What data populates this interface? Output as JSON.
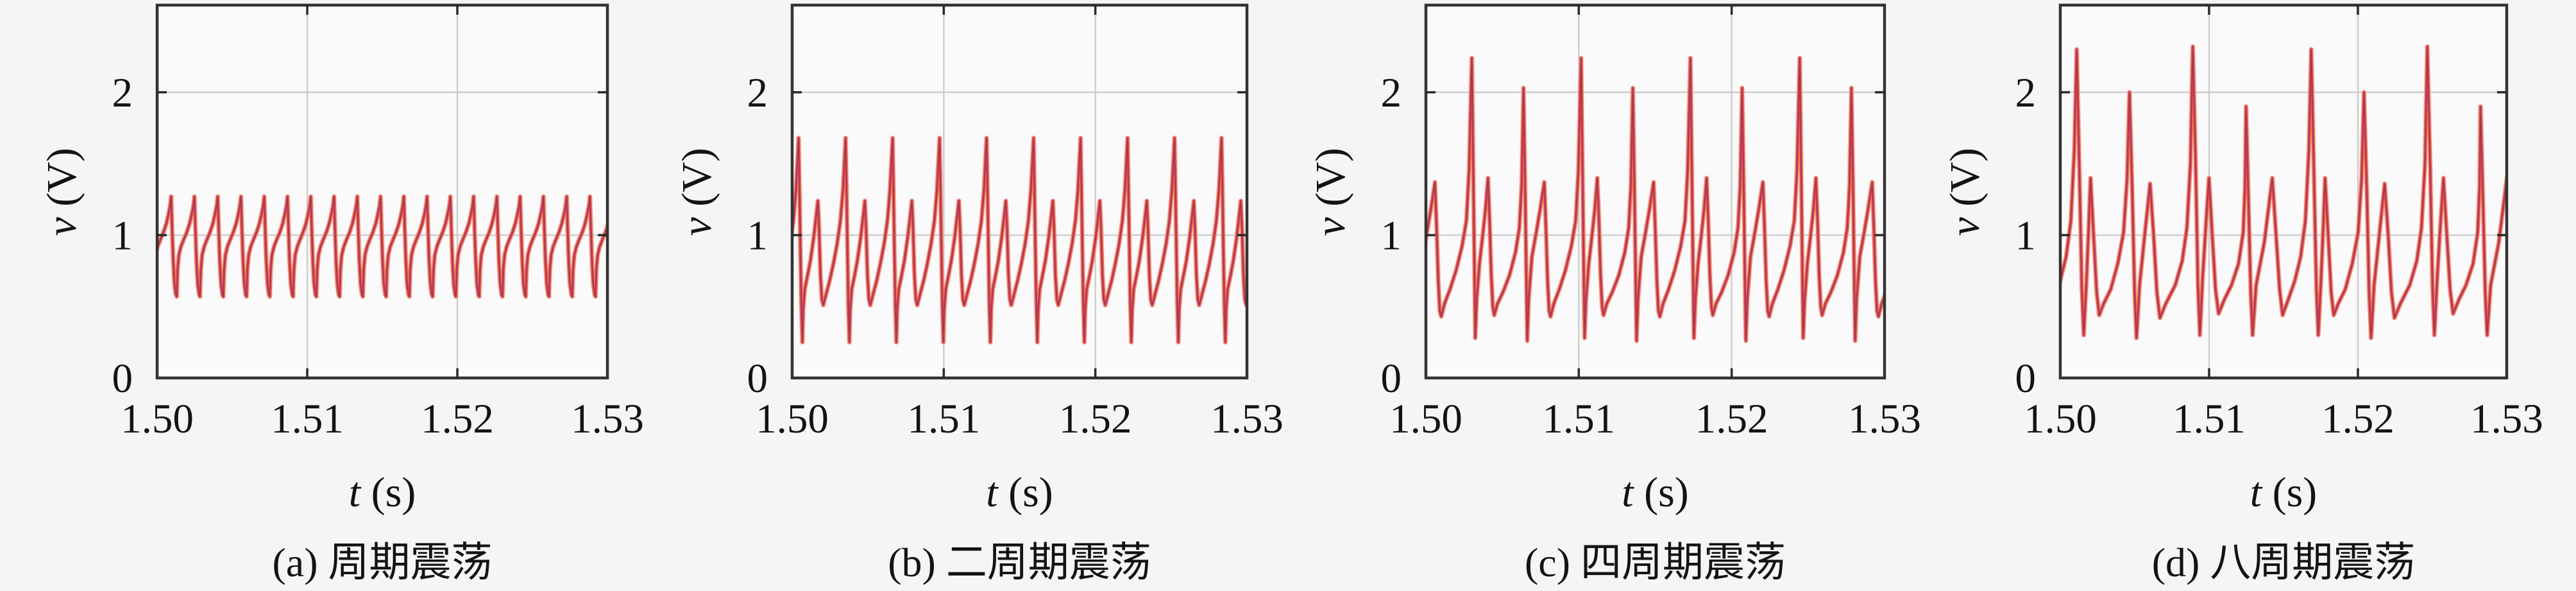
{
  "figure_background": "#f5f5f6",
  "axes_style": {
    "plot_background": "#fafafa",
    "spine_color": "#333333",
    "grid_color": "#cdcdcd",
    "tick_color": "#2a2a2a",
    "text_color": "#131313"
  },
  "series_strokes": [
    {
      "name": "halo-stroke",
      "color": "#f2a0b8",
      "width": 8,
      "opacity": 0.55
    },
    {
      "name": "under-stroke",
      "color": "#e88040",
      "width": 5.8,
      "opacity": 1
    },
    {
      "name": "main-stroke",
      "color": "#dd4168",
      "width": 3.4,
      "opacity": 1
    },
    {
      "name": "core-stroke",
      "color": "#8e3248",
      "width": 1.4,
      "opacity": 0.8
    }
  ],
  "x_axis_label": {
    "variable": "t",
    "unit": " (s)"
  },
  "y_axis_label": {
    "variable": "v",
    "unit": " (V)"
  },
  "chart_data": [
    {
      "id": "a",
      "type": "line",
      "caption": "(a) 周期震荡",
      "xlabel": "t (s)",
      "ylabel": "v (V)",
      "xlim": [
        1.5,
        1.53
      ],
      "ylim": [
        0,
        2.61
      ],
      "xticks": [
        1.5,
        1.51,
        1.52,
        1.53
      ],
      "xtick_labels": [
        "1.50",
        "1.51",
        "1.52",
        "1.53"
      ],
      "yticks": [
        0,
        1,
        2
      ],
      "ytick_labels": [
        "0",
        "1",
        "2"
      ],
      "grid": true,
      "waveform": {
        "description": "period-1 relaxation oscillation, ~19 identical spikes in window",
        "period_s": 0.00155,
        "phase_at_xmin": 0.157,
        "peaks_v": [
          1.27
        ],
        "troughs_v": [
          0.57
        ],
        "cycle_keypoints": [
          [
            0.0,
            0.57
          ],
          [
            0.035,
            0.76
          ],
          [
            0.09,
            0.86
          ],
          [
            0.18,
            0.92
          ],
          [
            0.3,
            0.97
          ],
          [
            0.43,
            1.02
          ],
          [
            0.55,
            1.08
          ],
          [
            0.65,
            1.15
          ],
          [
            0.72,
            1.21
          ],
          [
            0.76,
            1.27
          ],
          [
            0.8,
            1.05
          ],
          [
            0.845,
            0.83
          ],
          [
            0.9,
            0.66
          ],
          [
            0.96,
            0.585
          ],
          [
            1.0,
            0.57
          ]
        ]
      }
    },
    {
      "id": "b",
      "type": "line",
      "caption": "(b) 二周期震荡",
      "xlabel": "t (s)",
      "ylabel": "v (V)",
      "xlim": [
        1.5,
        1.53
      ],
      "ylim": [
        0,
        2.61
      ],
      "xticks": [
        1.5,
        1.51,
        1.52,
        1.53
      ],
      "xtick_labels": [
        "1.50",
        "1.51",
        "1.52",
        "1.53"
      ],
      "yticks": [
        0,
        1,
        2
      ],
      "ytick_labels": [
        "0",
        "1",
        "2"
      ],
      "grid": true,
      "waveform": {
        "description": "period-2 oscillation: alternating large (1.68 V) and small (1.24 V) spikes",
        "period_s": 0.0031,
        "phase_at_xmin": 0.783,
        "peaks_v": [
          1.68,
          1.24
        ],
        "troughs_v": [
          0.25,
          0.51
        ],
        "cycle_keypoints": [
          [
            0.0,
            0.25
          ],
          [
            0.018,
            0.48
          ],
          [
            0.05,
            0.62
          ],
          [
            0.1,
            0.7
          ],
          [
            0.17,
            0.82
          ],
          [
            0.24,
            0.98
          ],
          [
            0.29,
            1.12
          ],
          [
            0.33,
            1.24
          ],
          [
            0.355,
            1.05
          ],
          [
            0.385,
            0.72
          ],
          [
            0.415,
            0.55
          ],
          [
            0.445,
            0.51
          ],
          [
            0.5,
            0.58
          ],
          [
            0.58,
            0.68
          ],
          [
            0.66,
            0.8
          ],
          [
            0.74,
            0.94
          ],
          [
            0.81,
            1.1
          ],
          [
            0.865,
            1.32
          ],
          [
            0.9,
            1.55
          ],
          [
            0.92,
            1.68
          ],
          [
            0.94,
            1.3
          ],
          [
            0.958,
            0.92
          ],
          [
            0.978,
            0.52
          ],
          [
            1.0,
            0.25
          ]
        ]
      }
    },
    {
      "id": "c",
      "type": "line",
      "caption": "(c) 四周期震荡",
      "xlabel": "t (s)",
      "ylabel": "v (V)",
      "xlim": [
        1.5,
        1.53
      ],
      "ylim": [
        0,
        2.61
      ],
      "xticks": [
        1.5,
        1.51,
        1.52,
        1.53
      ],
      "xtick_labels": [
        "1.50",
        "1.51",
        "1.52",
        "1.53"
      ],
      "yticks": [
        0,
        1,
        2
      ],
      "ytick_labels": [
        "0",
        "1",
        "2"
      ],
      "grid": true,
      "waveform": {
        "description": "period-4 oscillation: spike heights repeat 2.24, 1.40, 2.03, 1.37 V",
        "period_s": 0.00715,
        "phase_at_xmin": 0.58,
        "peaks_v": [
          2.24,
          1.4,
          2.03,
          1.37
        ],
        "troughs_v": [
          0.28,
          0.44,
          0.26,
          0.43
        ],
        "cycle_keypoints": [
          [
            0.0,
            2.24
          ],
          [
            0.013,
            1.45
          ],
          [
            0.024,
            0.75
          ],
          [
            0.032,
            0.28
          ],
          [
            0.045,
            0.55
          ],
          [
            0.07,
            0.8
          ],
          [
            0.1,
            1.0
          ],
          [
            0.125,
            1.18
          ],
          [
            0.148,
            1.4
          ],
          [
            0.163,
            1.1
          ],
          [
            0.178,
            0.72
          ],
          [
            0.192,
            0.5
          ],
          [
            0.205,
            0.44
          ],
          [
            0.235,
            0.52
          ],
          [
            0.285,
            0.6
          ],
          [
            0.345,
            0.72
          ],
          [
            0.4,
            0.88
          ],
          [
            0.435,
            1.05
          ],
          [
            0.456,
            1.35
          ],
          [
            0.473,
            2.03
          ],
          [
            0.487,
            1.35
          ],
          [
            0.499,
            0.7
          ],
          [
            0.507,
            0.26
          ],
          [
            0.52,
            0.55
          ],
          [
            0.55,
            0.85
          ],
          [
            0.59,
            1.02
          ],
          [
            0.625,
            1.18
          ],
          [
            0.663,
            1.37
          ],
          [
            0.678,
            1.05
          ],
          [
            0.693,
            0.68
          ],
          [
            0.707,
            0.47
          ],
          [
            0.72,
            0.43
          ],
          [
            0.75,
            0.52
          ],
          [
            0.8,
            0.62
          ],
          [
            0.855,
            0.75
          ],
          [
            0.91,
            0.92
          ],
          [
            0.95,
            1.1
          ],
          [
            0.975,
            1.45
          ],
          [
            1.0,
            2.24
          ]
        ]
      }
    },
    {
      "id": "d",
      "type": "line",
      "caption": "(d) 八周期震荡",
      "xlabel": "t (s)",
      "ylabel": "v (V)",
      "xlim": [
        1.5,
        1.53
      ],
      "ylim": [
        0,
        2.61
      ],
      "xticks": [
        1.5,
        1.51,
        1.52,
        1.53
      ],
      "xtick_labels": [
        "1.50",
        "1.51",
        "1.52",
        "1.53"
      ],
      "yticks": [
        0,
        1,
        2
      ],
      "ytick_labels": [
        "0",
        "1",
        "2"
      ],
      "grid": true,
      "waveform": {
        "description": "period-8 oscillation: spike heights repeat 2.30, 1.40, 2.00, 1.36, 2.32, 1.40, 1.90, 1.40 V",
        "period_s": 0.01576,
        "phase_at_xmin": 0.93,
        "peaks_v": [
          2.3,
          1.4,
          2.0,
          1.36,
          2.32,
          1.4,
          1.9,
          1.4
        ],
        "troughs_v": [
          0.3,
          0.44,
          0.28,
          0.42,
          0.3,
          0.45,
          0.3,
          0.44
        ],
        "cycle_keypoints": [
          [
            0.0,
            2.3
          ],
          [
            0.012,
            1.4
          ],
          [
            0.022,
            0.62
          ],
          [
            0.03,
            0.3
          ],
          [
            0.042,
            0.7
          ],
          [
            0.051,
            1.05
          ],
          [
            0.059,
            1.4
          ],
          [
            0.072,
            1.0
          ],
          [
            0.085,
            0.6
          ],
          [
            0.096,
            0.44
          ],
          [
            0.115,
            0.52
          ],
          [
            0.145,
            0.62
          ],
          [
            0.175,
            0.8
          ],
          [
            0.2,
            1.02
          ],
          [
            0.215,
            1.4
          ],
          [
            0.225,
            2.0
          ],
          [
            0.237,
            1.3
          ],
          [
            0.247,
            0.6
          ],
          [
            0.255,
            0.28
          ],
          [
            0.268,
            0.65
          ],
          [
            0.29,
            1.0
          ],
          [
            0.313,
            1.36
          ],
          [
            0.328,
            1.0
          ],
          [
            0.342,
            0.6
          ],
          [
            0.355,
            0.42
          ],
          [
            0.38,
            0.52
          ],
          [
            0.42,
            0.65
          ],
          [
            0.45,
            0.82
          ],
          [
            0.47,
            1.05
          ],
          [
            0.485,
            1.5
          ],
          [
            0.495,
            2.32
          ],
          [
            0.507,
            1.5
          ],
          [
            0.517,
            0.65
          ],
          [
            0.525,
            0.3
          ],
          [
            0.537,
            0.7
          ],
          [
            0.55,
            1.05
          ],
          [
            0.564,
            1.4
          ],
          [
            0.578,
            1.0
          ],
          [
            0.592,
            0.62
          ],
          [
            0.605,
            0.45
          ],
          [
            0.63,
            0.55
          ],
          [
            0.66,
            0.65
          ],
          [
            0.69,
            0.8
          ],
          [
            0.71,
            1.02
          ],
          [
            0.718,
            1.35
          ],
          [
            0.722,
            1.9
          ],
          [
            0.733,
            1.2
          ],
          [
            0.742,
            0.6
          ],
          [
            0.75,
            0.3
          ],
          [
            0.765,
            0.65
          ],
          [
            0.8,
            0.95
          ],
          [
            0.834,
            1.4
          ],
          [
            0.85,
            1.0
          ],
          [
            0.865,
            0.62
          ],
          [
            0.878,
            0.44
          ],
          [
            0.9,
            0.54
          ],
          [
            0.93,
            0.68
          ],
          [
            0.955,
            0.85
          ],
          [
            0.975,
            1.1
          ],
          [
            0.99,
            1.6
          ],
          [
            1.0,
            2.3
          ]
        ]
      }
    }
  ]
}
